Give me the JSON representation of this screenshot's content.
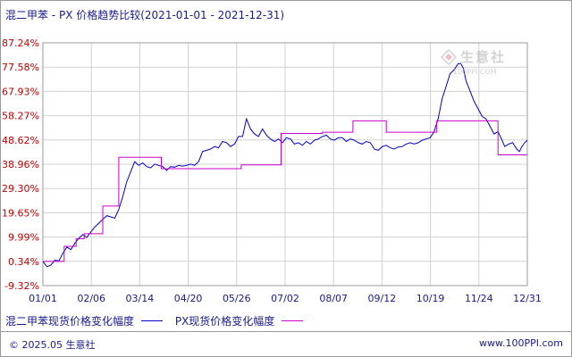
{
  "title": "混二甲苯 - PX 价格趋势比较(2021-01-01 - 2021-12-31)",
  "watermark": {
    "brand": "生意社",
    "url": "100PPI.COM"
  },
  "footer": {
    "copyright": "© 2025.05 生意社",
    "site": "www.100PPI.com"
  },
  "colors": {
    "series1": "#0000cc",
    "series2": "#cc00cc",
    "grid": "#d0d0d0",
    "ytick": "#c00000",
    "text": "#1a1a8c"
  },
  "chart_data": {
    "type": "line",
    "x_ticks": [
      "01/01",
      "02/06",
      "03/14",
      "04/20",
      "05/26",
      "07/02",
      "08/07",
      "09/12",
      "10/19",
      "11/24",
      "12/31"
    ],
    "y_ticks": [
      "87.24%",
      "77.58%",
      "67.93%",
      "58.27%",
      "48.62%",
      "38.96%",
      "29.30%",
      "19.65%",
      "9.99%",
      "0.34%",
      "-9.32%"
    ],
    "ylim": [
      -9.32,
      87.24
    ],
    "x_unit": "day-of-year",
    "xlim": [
      0,
      364
    ],
    "legend_position": "bottom-left",
    "grid": true,
    "series": [
      {
        "name": "混二甲苯现货价格变化幅度",
        "color": "#0000cc",
        "points": [
          [
            0,
            0.3
          ],
          [
            3,
            -1.8
          ],
          [
            6,
            -1.2
          ],
          [
            9,
            0.8
          ],
          [
            12,
            0.5
          ],
          [
            15,
            3.5
          ],
          [
            18,
            6
          ],
          [
            21,
            5
          ],
          [
            24,
            7.5
          ],
          [
            27,
            9.5
          ],
          [
            30,
            11
          ],
          [
            33,
            9.8
          ],
          [
            36,
            12
          ],
          [
            39,
            14
          ],
          [
            42,
            15.5
          ],
          [
            45,
            17
          ],
          [
            48,
            18.5
          ],
          [
            51,
            18
          ],
          [
            54,
            17.5
          ],
          [
            57,
            21
          ],
          [
            60,
            26
          ],
          [
            63,
            32
          ],
          [
            66,
            36
          ],
          [
            69,
            40
          ],
          [
            72,
            38.5
          ],
          [
            75,
            39.5
          ],
          [
            78,
            38
          ],
          [
            81,
            37.5
          ],
          [
            84,
            39
          ],
          [
            87,
            38.5
          ],
          [
            90,
            38
          ],
          [
            93,
            36.5
          ],
          [
            96,
            38
          ],
          [
            99,
            37.8
          ],
          [
            102,
            38.5
          ],
          [
            105,
            38.2
          ],
          [
            108,
            38.5
          ],
          [
            111,
            39
          ],
          [
            114,
            38.5
          ],
          [
            117,
            40
          ],
          [
            120,
            44
          ],
          [
            123,
            44.5
          ],
          [
            126,
            45
          ],
          [
            129,
            46
          ],
          [
            132,
            45.5
          ],
          [
            135,
            48
          ],
          [
            138,
            47.5
          ],
          [
            141,
            46
          ],
          [
            144,
            47
          ],
          [
            147,
            50
          ],
          [
            150,
            50
          ],
          [
            153,
            57
          ],
          [
            156,
            53
          ],
          [
            159,
            51
          ],
          [
            162,
            50
          ],
          [
            165,
            53
          ],
          [
            168,
            50.5
          ],
          [
            171,
            49
          ],
          [
            174,
            48
          ],
          [
            177,
            49
          ],
          [
            180,
            47.5
          ],
          [
            183,
            49.5
          ],
          [
            186,
            49
          ],
          [
            189,
            47
          ],
          [
            192,
            47.5
          ],
          [
            195,
            46.5
          ],
          [
            198,
            48
          ],
          [
            201,
            47
          ],
          [
            204,
            48.5
          ],
          [
            207,
            49
          ],
          [
            210,
            50
          ],
          [
            213,
            50.5
          ],
          [
            216,
            49
          ],
          [
            219,
            48.5
          ],
          [
            222,
            49.5
          ],
          [
            225,
            49.5
          ],
          [
            228,
            48
          ],
          [
            231,
            49
          ],
          [
            234,
            48.5
          ],
          [
            237,
            47.5
          ],
          [
            240,
            47
          ],
          [
            243,
            48
          ],
          [
            246,
            47.5
          ],
          [
            249,
            45
          ],
          [
            252,
            44.5
          ],
          [
            255,
            46
          ],
          [
            258,
            46.5
          ],
          [
            261,
            45.5
          ],
          [
            264,
            45
          ],
          [
            267,
            45.8
          ],
          [
            270,
            46
          ],
          [
            273,
            47
          ],
          [
            276,
            47.5
          ],
          [
            279,
            47
          ],
          [
            282,
            47.5
          ],
          [
            285,
            48.5
          ],
          [
            288,
            49
          ],
          [
            291,
            49.5
          ],
          [
            294,
            52
          ],
          [
            297,
            57
          ],
          [
            300,
            65
          ],
          [
            303,
            70
          ],
          [
            306,
            75
          ],
          [
            309,
            76.5
          ],
          [
            312,
            79
          ],
          [
            314,
            79
          ],
          [
            316,
            77
          ],
          [
            318,
            72
          ],
          [
            321,
            68
          ],
          [
            324,
            64
          ],
          [
            327,
            61
          ],
          [
            330,
            58
          ],
          [
            333,
            57
          ],
          [
            336,
            54
          ],
          [
            339,
            51
          ],
          [
            342,
            52
          ],
          [
            345,
            48.5
          ],
          [
            347,
            46
          ],
          [
            350,
            47
          ],
          [
            353,
            47.5
          ],
          [
            356,
            45
          ],
          [
            358,
            44
          ],
          [
            360,
            46
          ],
          [
            362,
            47.5
          ],
          [
            364,
            48.5
          ]
        ]
      },
      {
        "name": "PX现货价格变化幅度",
        "color": "#cc00cc",
        "points": [
          [
            0,
            0.3
          ],
          [
            16,
            0.3
          ],
          [
            16,
            6.3
          ],
          [
            25,
            6.3
          ],
          [
            25,
            9.3
          ],
          [
            31,
            9.3
          ],
          [
            31,
            11.3
          ],
          [
            45,
            11.3
          ],
          [
            45,
            22.3
          ],
          [
            57,
            22.3
          ],
          [
            57,
            41.7
          ],
          [
            89,
            41.7
          ],
          [
            89,
            37.2
          ],
          [
            149,
            37.2
          ],
          [
            149,
            38.7
          ],
          [
            179,
            38.7
          ],
          [
            179,
            51.2
          ],
          [
            210,
            51.2
          ],
          [
            210,
            51.7
          ],
          [
            233,
            51.7
          ],
          [
            233,
            56.2
          ],
          [
            258,
            56.2
          ],
          [
            258,
            51.7
          ],
          [
            296,
            51.7
          ],
          [
            296,
            56.2
          ],
          [
            342,
            56.2
          ],
          [
            342,
            42.7
          ],
          [
            364,
            42.7
          ]
        ]
      }
    ]
  }
}
